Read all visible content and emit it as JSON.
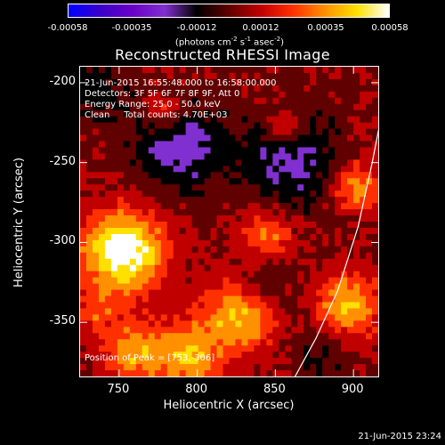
{
  "colorbar": {
    "ticks": [
      "-0.00058",
      "-0.00035",
      "-0.00012",
      "0.00012",
      "0.00035",
      "0.00058"
    ],
    "unit": {
      "base": "(photons cm",
      "exp1": "-2",
      "mid1": " s",
      "exp2": "-1",
      "mid2": " asec",
      "exp3": "-2",
      "end": ")"
    }
  },
  "title": "Reconstructed RHESSI Image",
  "info": {
    "time": "21-Jun-2015 16:55:48.000 to 16:58:00.000",
    "detectors": "Detectors: 3F 5F 6F 7F 8F 9F, Att 0",
    "energy": "Energy Range: 25.0 - 50.0 keV",
    "clean": "Clean     Total counts: 4.70E+03",
    "peak": "Position of Peak = [753,-306]"
  },
  "timestamp": "21-Jun-2015 23:24",
  "chart_data": {
    "type": "heatmap",
    "title": "Reconstructed RHESSI Image",
    "xlabel": "Heliocentric X (arcsec)",
    "ylabel": "Heliocentric Y (arcsec)",
    "xlim": [
      725,
      917
    ],
    "ylim": [
      -385,
      -190
    ],
    "xticks": [
      750,
      800,
      850,
      900
    ],
    "yticks": [
      -200,
      -250,
      -300,
      -350
    ],
    "colorbar_range": [
      -0.00058,
      0.00058
    ],
    "colormap": [
      "#0000ff",
      "#3a00c8",
      "#6a00c8",
      "#8030d0",
      "#000000",
      "#600000",
      "#c00000",
      "#ff3000",
      "#ff9000",
      "#ffe000",
      "#ffffff"
    ],
    "sources": [
      {
        "x": 753,
        "y": -306,
        "intensity": 1.0,
        "spread": 18
      },
      {
        "x": 829,
        "y": -345,
        "intensity": 0.75,
        "spread": 16
      },
      {
        "x": 795,
        "y": -372,
        "intensity": 0.6,
        "spread": 15
      },
      {
        "x": 760,
        "y": -370,
        "intensity": 0.55,
        "spread": 13
      },
      {
        "x": 898,
        "y": -340,
        "intensity": 0.65,
        "spread": 14
      },
      {
        "x": 903,
        "y": -265,
        "intensity": 0.55,
        "spread": 11
      },
      {
        "x": 845,
        "y": -295,
        "intensity": 0.45,
        "spread": 12
      },
      {
        "x": 780,
        "y": -218,
        "intensity": 0.4,
        "spread": 8
      },
      {
        "x": 856,
        "y": -228,
        "intensity": 0.35,
        "spread": 9
      },
      {
        "x": 735,
        "y": -345,
        "intensity": 0.3,
        "spread": 10
      },
      {
        "x": 790,
        "y": -240,
        "intensity": -0.5,
        "spread": 20
      },
      {
        "x": 860,
        "y": -250,
        "intensity": -0.45,
        "spread": 22
      },
      {
        "x": 840,
        "y": -330,
        "intensity": -0.35,
        "spread": 14
      },
      {
        "x": 735,
        "y": -205,
        "intensity": -0.3,
        "spread": 14
      },
      {
        "x": 880,
        "y": -370,
        "intensity": -0.25,
        "spread": 12
      }
    ],
    "limb_line": [
      [
        862,
        -385
      ],
      [
        876,
        -360
      ],
      [
        890,
        -330
      ],
      [
        903,
        -290
      ],
      [
        912,
        -250
      ],
      [
        917,
        -225
      ]
    ],
    "peak": [
      753,
      -306
    ]
  }
}
